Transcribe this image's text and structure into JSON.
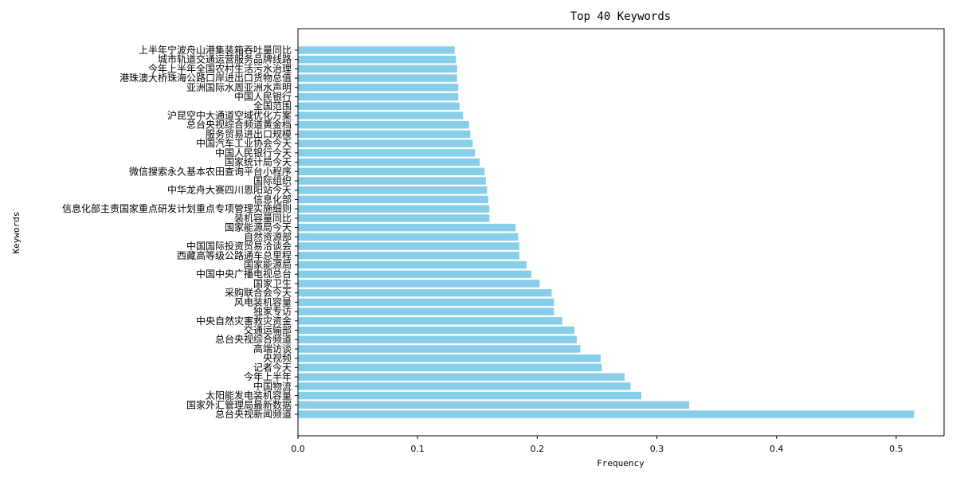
{
  "chart_data": {
    "type": "bar",
    "orientation": "horizontal",
    "title": "Top 40 Keywords",
    "xlabel": "Frequency",
    "ylabel": "Keywords",
    "xlim": [
      0,
      0.54
    ],
    "xticks": [
      0.0,
      0.1,
      0.2,
      0.3,
      0.4,
      0.5
    ],
    "xtick_labels": [
      "0.0",
      "0.1",
      "0.2",
      "0.3",
      "0.4",
      "0.5"
    ],
    "bar_color": "#87ceeb",
    "grid": false,
    "categories": [
      "总台央视新闻频道",
      "国家外汇管理局最新数据",
      "太阳能发电装机容量",
      "中国物流",
      "今年上半年",
      "记者今天",
      "央视频",
      "高端访谈",
      "总台央视综合频道",
      "交通运输部",
      "中央自然灾害救灾资金",
      "独家专访",
      "风电装机容量",
      "采购联合会今天",
      "国家卫生",
      "中国中央广播电视总台",
      "国家能源局",
      "西藏高等级公路通车总里程",
      "中国国际投资贸易洽谈会",
      "自然资源部",
      "国家能源局今天",
      "装机容量同比",
      "信息化部主责国家重点研发计划重点专项管理实施细则",
      "信息化部",
      "中华龙舟大赛四川恩阳站今天",
      "国际组织",
      "微信搜索永久基本农田查询平台小程序",
      "国家统计局今天",
      "中国人民银行今天",
      "中国汽车工业协会今天",
      "服务贸易进出口规模",
      "总台央视综合频道黄金档",
      "沪昆空中大通道空域优化方案",
      "全国范围",
      "中国人民银行",
      "亚洲国际水周亚洲水声明",
      "港珠澳大桥珠海公路口岸进出口货物总值",
      "今年上半年全国农村生活污水治理",
      "城市轨道交通运营服务品牌线路",
      "上半年宁波舟山港集装箱吞吐量同比"
    ],
    "values": [
      0.515,
      0.327,
      0.287,
      0.278,
      0.273,
      0.254,
      0.253,
      0.236,
      0.233,
      0.231,
      0.221,
      0.214,
      0.214,
      0.212,
      0.202,
      0.195,
      0.191,
      0.185,
      0.185,
      0.184,
      0.182,
      0.16,
      0.16,
      0.159,
      0.158,
      0.157,
      0.156,
      0.152,
      0.148,
      0.146,
      0.144,
      0.143,
      0.138,
      0.135,
      0.134,
      0.134,
      0.133,
      0.133,
      0.132,
      0.131
    ]
  }
}
